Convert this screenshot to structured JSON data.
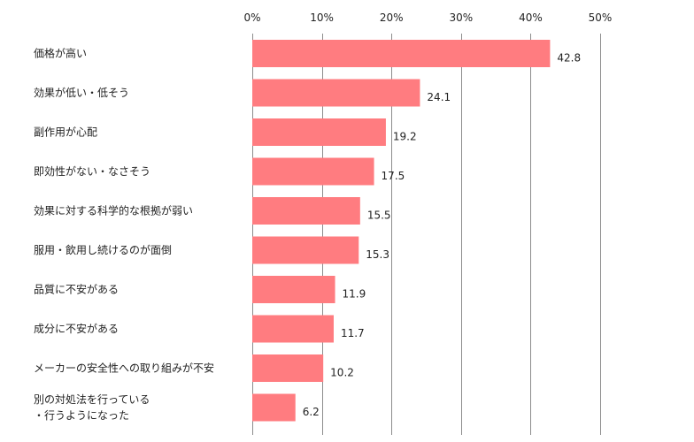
{
  "chart_data": {
    "type": "bar",
    "orientation": "horizontal",
    "categories": [
      [
        "価格が高い"
      ],
      [
        "効果が低い・低そう"
      ],
      [
        "副作用が心配"
      ],
      [
        "即効性がない・なさそう"
      ],
      [
        "効果に対する科学的な根拠が弱い"
      ],
      [
        "服用・飲用し続けるのが面倒"
      ],
      [
        "品質に不安がある"
      ],
      [
        "成分に不安がある"
      ],
      [
        "メーカーの安全性への取り組みが不安"
      ],
      [
        "別の対処法を行っている",
        "・行うようになった"
      ]
    ],
    "values": [
      42.8,
      24.1,
      19.2,
      17.5,
      15.5,
      15.3,
      11.9,
      11.7,
      10.2,
      6.2
    ],
    "value_labels": [
      "42.8",
      "24.1",
      "19.2",
      "17.5",
      "15.5",
      "15.3",
      "11.9",
      "11.7",
      "10.2",
      "6.2"
    ],
    "xlim": [
      0,
      50
    ],
    "xticks": [
      0,
      10,
      20,
      30,
      40,
      50
    ],
    "xtick_labels": [
      "0%",
      "10%",
      "20%",
      "30%",
      "40%",
      "50%"
    ],
    "axis_position": "top",
    "grid": true,
    "legend": "none",
    "bar_color": "#ff7c80",
    "title": "",
    "xlabel": "",
    "ylabel": ""
  }
}
